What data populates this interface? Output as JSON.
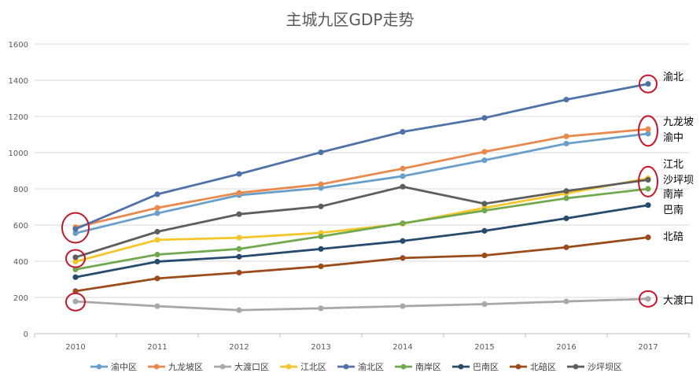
{
  "chart_data": {
    "type": "line",
    "title": "主城九区GDP走势",
    "xlabel": "",
    "ylabel": "",
    "x": [
      "2010",
      "2011",
      "2012",
      "2013",
      "2014",
      "2015",
      "2016",
      "2017"
    ],
    "ylim": [
      0,
      1600
    ],
    "yticks": [
      0,
      200,
      400,
      600,
      800,
      1000,
      1200,
      1400,
      1600
    ],
    "grid": true,
    "legend": "bottom",
    "series": [
      {
        "name": "渝中区",
        "color": "#6a9fc9",
        "values": [
          555,
          665,
          765,
          805,
          870,
          958,
          1050,
          1105
        ]
      },
      {
        "name": "九龙坡区",
        "color": "#e88a4e",
        "values": [
          588,
          695,
          778,
          825,
          912,
          1005,
          1090,
          1130
        ]
      },
      {
        "name": "大渡口区",
        "color": "#a8a8a8",
        "values": [
          178,
          152,
          130,
          140,
          152,
          163,
          178,
          192
        ]
      },
      {
        "name": "江北区",
        "color": "#f5c62a",
        "values": [
          398,
          518,
          530,
          557,
          607,
          695,
          775,
          858
        ]
      },
      {
        "name": "渝北区",
        "color": "#4f73a8",
        "values": [
          578,
          770,
          882,
          1002,
          1115,
          1192,
          1293,
          1380
        ]
      },
      {
        "name": "南岸区",
        "color": "#72a94e",
        "values": [
          355,
          437,
          468,
          537,
          610,
          680,
          748,
          800
        ]
      },
      {
        "name": "巴南区",
        "color": "#264b6e",
        "values": [
          312,
          398,
          425,
          468,
          512,
          568,
          637,
          710
        ]
      },
      {
        "name": "北碚区",
        "color": "#9a4d1a",
        "values": [
          235,
          305,
          337,
          372,
          418,
          432,
          477,
          532
        ]
      },
      {
        "name": "沙坪坝区",
        "color": "#5e5e5e",
        "values": [
          422,
          563,
          660,
          703,
          812,
          718,
          788,
          850
        ]
      }
    ],
    "annotations": {
      "end_labels": [
        {
          "text": "渝北",
          "series": "渝北区"
        },
        {
          "text": "九龙坡",
          "series": "九龙坡区"
        },
        {
          "text": "渝中",
          "series": "渝中区"
        },
        {
          "text": "江北",
          "series": "江北区"
        },
        {
          "text": "沙坪坝",
          "series": "沙坪坝区"
        },
        {
          "text": "南岸",
          "series": "南岸区"
        },
        {
          "text": "巴南",
          "series": "巴南区"
        },
        {
          "text": "北碚",
          "series": "北碚区"
        },
        {
          "text": "大渡口",
          "series": "大渡口区"
        }
      ],
      "circle_color": "#c0172b"
    }
  }
}
